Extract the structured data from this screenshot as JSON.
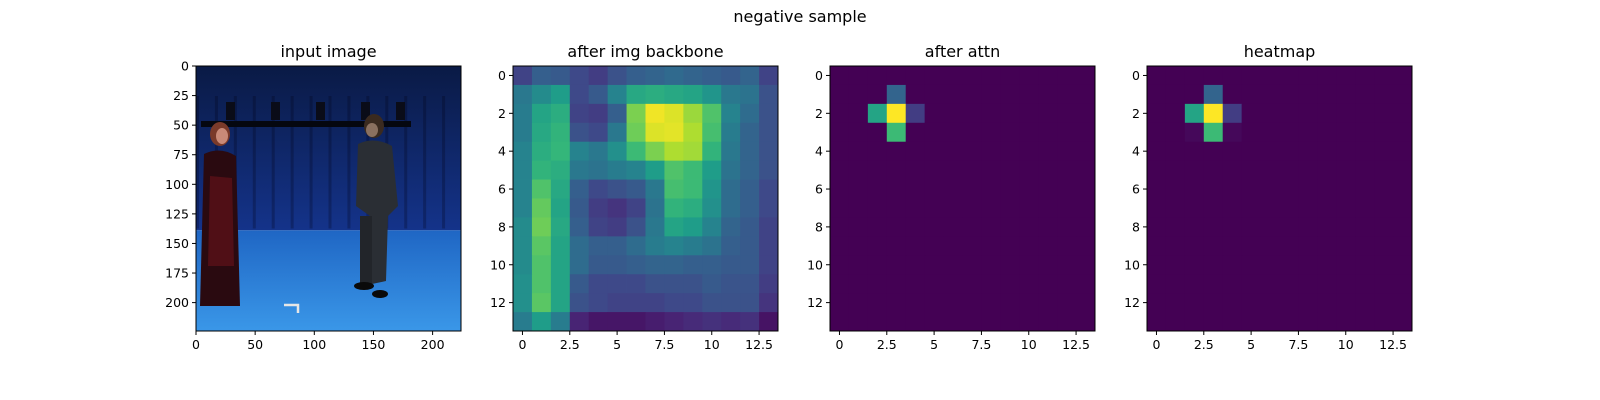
{
  "figure": {
    "suptitle": "negative sample"
  },
  "chart_data": [
    {
      "type": "image",
      "title": "input image",
      "xlim": [
        0,
        224
      ],
      "ylim": [
        224,
        0
      ],
      "xticks": [
        0,
        50,
        100,
        150,
        200
      ],
      "yticks": [
        0,
        25,
        50,
        75,
        100,
        125,
        150,
        175,
        200
      ],
      "content": "photo of two people standing in a blue motion-capture studio"
    },
    {
      "type": "heatmap",
      "title": "after img backbone",
      "colormap": "viridis",
      "xticks": [
        0.0,
        2.5,
        5.0,
        7.5,
        10.0,
        12.5
      ],
      "yticks": [
        0,
        2,
        4,
        6,
        8,
        10,
        12
      ],
      "values": [
        [
          0.2,
          0.3,
          0.28,
          0.22,
          0.18,
          0.25,
          0.3,
          0.32,
          0.34,
          0.32,
          0.3,
          0.28,
          0.32,
          0.2
        ],
        [
          0.4,
          0.48,
          0.55,
          0.22,
          0.28,
          0.45,
          0.6,
          0.62,
          0.6,
          0.58,
          0.52,
          0.4,
          0.38,
          0.25
        ],
        [
          0.42,
          0.58,
          0.62,
          0.2,
          0.18,
          0.3,
          0.8,
          0.98,
          0.95,
          0.85,
          0.72,
          0.45,
          0.35,
          0.25
        ],
        [
          0.42,
          0.6,
          0.65,
          0.25,
          0.22,
          0.4,
          0.78,
          0.95,
          0.96,
          0.88,
          0.7,
          0.42,
          0.32,
          0.25
        ],
        [
          0.45,
          0.62,
          0.66,
          0.45,
          0.4,
          0.5,
          0.68,
          0.8,
          0.88,
          0.86,
          0.65,
          0.4,
          0.32,
          0.25
        ],
        [
          0.45,
          0.65,
          0.62,
          0.4,
          0.38,
          0.42,
          0.45,
          0.55,
          0.72,
          0.68,
          0.55,
          0.38,
          0.32,
          0.25
        ],
        [
          0.45,
          0.72,
          0.6,
          0.3,
          0.22,
          0.25,
          0.28,
          0.4,
          0.7,
          0.68,
          0.52,
          0.35,
          0.3,
          0.22
        ],
        [
          0.45,
          0.76,
          0.58,
          0.28,
          0.18,
          0.15,
          0.2,
          0.38,
          0.65,
          0.62,
          0.5,
          0.35,
          0.3,
          0.22
        ],
        [
          0.48,
          0.78,
          0.6,
          0.3,
          0.2,
          0.18,
          0.25,
          0.4,
          0.58,
          0.55,
          0.45,
          0.32,
          0.28,
          0.2
        ],
        [
          0.48,
          0.74,
          0.58,
          0.35,
          0.3,
          0.3,
          0.35,
          0.42,
          0.45,
          0.42,
          0.38,
          0.3,
          0.28,
          0.2
        ],
        [
          0.48,
          0.72,
          0.58,
          0.35,
          0.28,
          0.28,
          0.3,
          0.32,
          0.32,
          0.3,
          0.3,
          0.28,
          0.28,
          0.2
        ],
        [
          0.5,
          0.72,
          0.58,
          0.28,
          0.22,
          0.22,
          0.22,
          0.25,
          0.25,
          0.25,
          0.28,
          0.26,
          0.26,
          0.18
        ],
        [
          0.5,
          0.74,
          0.58,
          0.25,
          0.22,
          0.2,
          0.2,
          0.2,
          0.22,
          0.22,
          0.25,
          0.25,
          0.25,
          0.15
        ],
        [
          0.42,
          0.55,
          0.42,
          0.1,
          0.06,
          0.06,
          0.06,
          0.08,
          0.1,
          0.12,
          0.14,
          0.12,
          0.14,
          0.05
        ]
      ]
    },
    {
      "type": "heatmap",
      "title": "after attn",
      "colormap": "viridis",
      "xticks": [
        0.0,
        2.5,
        5.0,
        7.5,
        10.0,
        12.5
      ],
      "yticks": [
        0,
        2,
        4,
        6,
        8,
        10,
        12
      ],
      "background": 0,
      "cells": [
        {
          "row": 1,
          "col": 3,
          "value": 0.32
        },
        {
          "row": 2,
          "col": 2,
          "value": 0.58
        },
        {
          "row": 2,
          "col": 3,
          "value": 1.0
        },
        {
          "row": 2,
          "col": 4,
          "value": 0.18
        },
        {
          "row": 3,
          "col": 3,
          "value": 0.68
        }
      ]
    },
    {
      "type": "heatmap",
      "title": "heatmap",
      "colormap": "viridis",
      "xticks": [
        0.0,
        2.5,
        5.0,
        7.5,
        10.0,
        12.5
      ],
      "yticks": [
        0,
        2,
        4,
        6,
        8,
        10,
        12
      ],
      "background": 0,
      "cells": [
        {
          "row": 1,
          "col": 3,
          "value": 0.32
        },
        {
          "row": 2,
          "col": 2,
          "value": 0.58
        },
        {
          "row": 2,
          "col": 3,
          "value": 1.0
        },
        {
          "row": 2,
          "col": 4,
          "value": 0.18
        },
        {
          "row": 3,
          "col": 2,
          "value": 0.02
        },
        {
          "row": 3,
          "col": 3,
          "value": 0.68
        },
        {
          "row": 3,
          "col": 4,
          "value": 0.02
        }
      ]
    }
  ]
}
